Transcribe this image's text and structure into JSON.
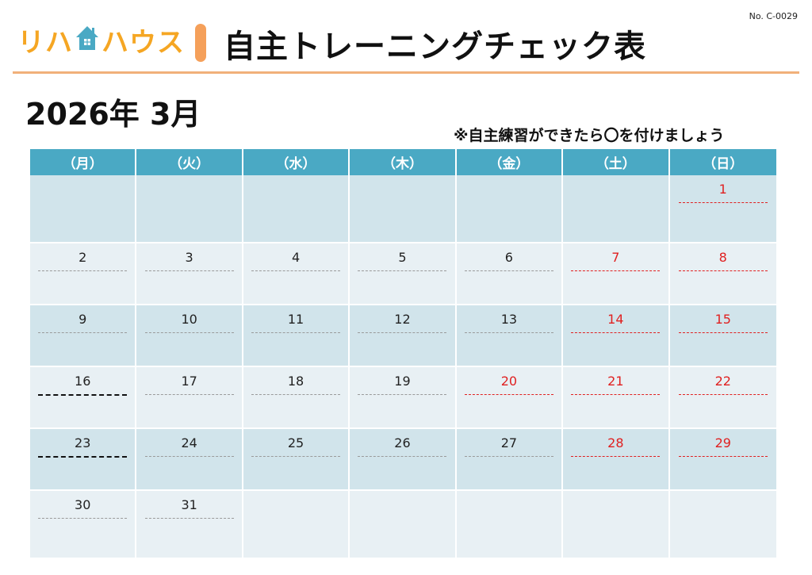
{
  "doc_number": "No. C-0029",
  "logo": {
    "text_left": "リハ",
    "text_right": "ハウス",
    "icon": "house-icon",
    "color": "#f5a623"
  },
  "title": "自主トレーニングチェック表",
  "month_label": "2026年 3月",
  "note": "※自主練習ができたら〇を付けましょう",
  "colors": {
    "header_bg": "#4aa9c4",
    "row_odd": "#d1e4eb",
    "row_even": "#e8f0f4",
    "holiday": "#e02020",
    "accent": "#f5a05a"
  },
  "weekdays": [
    "（月）",
    "（火）",
    "（水）",
    "（木）",
    "（金）",
    "（土）",
    "（日）"
  ],
  "weeks": [
    {
      "height": 86,
      "days": [
        {
          "num": ""
        },
        {
          "num": ""
        },
        {
          "num": ""
        },
        {
          "num": ""
        },
        {
          "num": ""
        },
        {
          "num": ""
        },
        {
          "num": "1",
          "red": true,
          "line": "red"
        }
      ]
    },
    {
      "height": 78,
      "days": [
        {
          "num": "2",
          "line": "gray"
        },
        {
          "num": "3",
          "line": "gray"
        },
        {
          "num": "4",
          "line": "gray"
        },
        {
          "num": "5",
          "line": "gray"
        },
        {
          "num": "6",
          "line": "gray"
        },
        {
          "num": "7",
          "red": true,
          "line": "red"
        },
        {
          "num": "8",
          "red": true,
          "line": "red"
        }
      ]
    },
    {
      "height": 78,
      "days": [
        {
          "num": "9",
          "line": "gray"
        },
        {
          "num": "10",
          "line": "gray"
        },
        {
          "num": "11",
          "line": "gray"
        },
        {
          "num": "12",
          "line": "gray"
        },
        {
          "num": "13",
          "line": "gray"
        },
        {
          "num": "14",
          "red": true,
          "line": "red"
        },
        {
          "num": "15",
          "red": true,
          "line": "red"
        }
      ]
    },
    {
      "height": 78,
      "days": [
        {
          "num": "16",
          "line": "dark"
        },
        {
          "num": "17",
          "line": "gray"
        },
        {
          "num": "18",
          "line": "gray"
        },
        {
          "num": "19",
          "line": "gray"
        },
        {
          "num": "20",
          "red": true,
          "line": "red"
        },
        {
          "num": "21",
          "red": true,
          "line": "red"
        },
        {
          "num": "22",
          "red": true,
          "line": "red"
        }
      ]
    },
    {
      "height": 78,
      "days": [
        {
          "num": "23",
          "line": "dark"
        },
        {
          "num": "24",
          "line": "gray"
        },
        {
          "num": "25",
          "line": "gray"
        },
        {
          "num": "26",
          "line": "gray"
        },
        {
          "num": "27",
          "line": "gray"
        },
        {
          "num": "28",
          "red": true,
          "line": "red"
        },
        {
          "num": "29",
          "red": true,
          "line": "red"
        }
      ]
    },
    {
      "height": 86,
      "days": [
        {
          "num": "30",
          "line": "gray"
        },
        {
          "num": "31",
          "line": "gray"
        },
        {
          "num": ""
        },
        {
          "num": ""
        },
        {
          "num": ""
        },
        {
          "num": ""
        },
        {
          "num": ""
        }
      ]
    }
  ]
}
